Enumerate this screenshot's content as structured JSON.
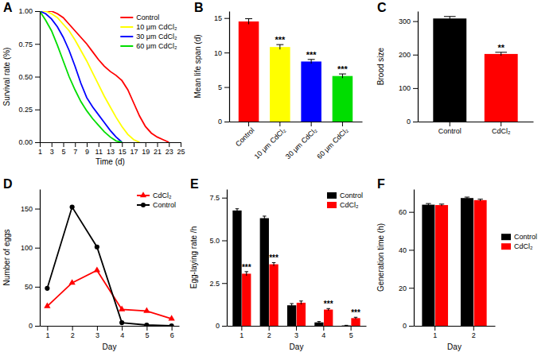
{
  "chart_data": [
    {
      "type": "line",
      "title": "A",
      "x": [
        1,
        2,
        3,
        4,
        5,
        6,
        7,
        8,
        9,
        10,
        11,
        12,
        13,
        14,
        15,
        16,
        17,
        18,
        19,
        20,
        21,
        22,
        23
      ],
      "xlim": [
        1,
        25
      ],
      "xticks": [
        1,
        3,
        5,
        7,
        9,
        11,
        13,
        15,
        17,
        19,
        21,
        23,
        25
      ],
      "ylim": [
        0,
        1
      ],
      "yticks": [
        {
          "value": 0,
          "label": "0.00"
        },
        0.25,
        {
          "value": 0.5,
          "label": "0.50"
        },
        0.75,
        {
          "value": 1,
          "label": "1.00"
        }
      ],
      "x_label": "Time (d)",
      "y_label": "Survival rate (%)",
      "legend": "top-right",
      "series": [
        {
          "name": "Control",
          "color": "#ff0000",
          "values": [
            1,
            1,
            1,
            0.98,
            0.95,
            0.9,
            0.85,
            0.8,
            0.75,
            0.69,
            0.63,
            0.58,
            0.54,
            0.51,
            0.47,
            0.4,
            0.3,
            0.2,
            0.12,
            0.07,
            0.04,
            0.02,
            0
          ]
        },
        {
          "name": "10 μm CdCl₂",
          "color": "#ffff00",
          "values": [
            1,
            1,
            0.98,
            0.95,
            0.9,
            0.85,
            0.78,
            0.7,
            0.62,
            0.53,
            0.44,
            0.35,
            0.27,
            0.19,
            0.12,
            0.06,
            0.02,
            0,
            null,
            null,
            null,
            null,
            null
          ]
        },
        {
          "name": "30 μm CdCl₂",
          "color": "#0000ff",
          "values": [
            1,
            0.98,
            0.94,
            0.88,
            0.8,
            0.7,
            0.58,
            0.45,
            0.34,
            0.27,
            0.21,
            0.15,
            0.09,
            0.04,
            0,
            null,
            null,
            null,
            null,
            null,
            null,
            null,
            null
          ]
        },
        {
          "name": "60 μm CdCl₂",
          "color": "#00dd00",
          "values": [
            1,
            0.93,
            0.85,
            0.74,
            0.62,
            0.5,
            0.4,
            0.31,
            0.24,
            0.18,
            0.13,
            0.08,
            0.04,
            0.01,
            0,
            null,
            null,
            null,
            null,
            null,
            null,
            null,
            null
          ]
        }
      ]
    },
    {
      "type": "bar",
      "title": "B",
      "categories": [
        "Control",
        "10 μm CdCl₂",
        "30 μm CdCl₂",
        "60 μm CdCl₂"
      ],
      "values": [
        14.5,
        10.8,
        8.7,
        6.6
      ],
      "errors": [
        0.4,
        0.35,
        0.3,
        0.3
      ],
      "colors": [
        "#ff0000",
        "#ffff00",
        "#0000ff",
        "#00dd00"
      ],
      "ylim": [
        0,
        16
      ],
      "yticks": [
        0,
        5,
        10,
        15
      ],
      "y_label": "Mean life span (d)",
      "annotations": [
        {
          "x": "10 μm CdCl₂",
          "text": "***"
        },
        {
          "x": "30 μm CdCl₂",
          "text": "***"
        },
        {
          "x": "60 μm CdCl₂",
          "text": "***"
        }
      ]
    },
    {
      "type": "bar",
      "title": "C",
      "categories": [
        "Control",
        "CdCl₂"
      ],
      "values": [
        308,
        202
      ],
      "errors": [
        6,
        5
      ],
      "colors": [
        "#000000",
        "#ff0000"
      ],
      "ylim": [
        0,
        330
      ],
      "yticks": [
        0,
        100,
        200,
        300
      ],
      "y_label": "Brood size",
      "annotations": [
        {
          "x": "CdCl₂",
          "text": "**"
        }
      ]
    },
    {
      "type": "line",
      "title": "D",
      "x": [
        1,
        2,
        3,
        4,
        5,
        6
      ],
      "xlim": [
        0.7,
        6.3
      ],
      "xticks": [
        1,
        2,
        3,
        4,
        5,
        6
      ],
      "ylim": [
        0,
        175
      ],
      "yticks": [
        0,
        50,
        100,
        150
      ],
      "x_label": "Day",
      "y_label": "Number of eggs",
      "legend": "top-right",
      "series": [
        {
          "name": "CdCl₂",
          "color": "#ff0000",
          "marker": "triangle",
          "values": [
            25,
            55,
            71,
            21,
            19,
            9
          ]
        },
        {
          "name": "Control",
          "color": "#000000",
          "marker": "circle",
          "values": [
            48,
            152,
            101,
            4,
            1,
            0
          ]
        }
      ]
    },
    {
      "type": "bar",
      "title": "E",
      "categories": [
        "1",
        "2",
        "3",
        "4",
        "5"
      ],
      "ylim": [
        0,
        8
      ],
      "yticks": [
        0,
        2.5,
        {
          "value": 5,
          "label": "5.0"
        },
        7.5
      ],
      "x_label": "Day",
      "y_label": "Egg-laying rate /h",
      "legend": "top-right",
      "series": [
        {
          "name": "Control",
          "color": "#000000",
          "values": [
            6.75,
            6.3,
            1.2,
            0.2,
            0.02
          ],
          "errors": [
            0.1,
            0.12,
            0.1,
            0.05,
            0.01
          ]
        },
        {
          "name": "CdCl₂",
          "color": "#ff0000",
          "values": [
            3.05,
            3.6,
            1.35,
            0.95,
            0.45
          ],
          "errors": [
            0.12,
            0.1,
            0.1,
            0.06,
            0.05
          ]
        }
      ],
      "annotations": [
        {
          "x": "1",
          "series": "CdCl₂",
          "text": "***"
        },
        {
          "x": "2",
          "series": "CdCl₂",
          "text": "***"
        },
        {
          "x": "4",
          "series": "CdCl₂",
          "text": "***"
        },
        {
          "x": "5",
          "series": "CdCl₂",
          "text": "***"
        }
      ]
    },
    {
      "type": "bar",
      "title": "F",
      "categories": [
        "1",
        "2"
      ],
      "ylim": [
        0,
        72
      ],
      "yticks": [
        0,
        20,
        40,
        60
      ],
      "x_label": "Day",
      "y_label": "Generation time (h)",
      "legend": "right",
      "series": [
        {
          "name": "Control",
          "color": "#000000",
          "values": [
            63.8,
            67.3
          ],
          "errors": [
            0.6,
            0.5
          ]
        },
        {
          "name": "CdCl₂",
          "color": "#ff0000",
          "values": [
            63.6,
            66.2
          ],
          "errors": [
            0.5,
            0.5
          ]
        }
      ]
    }
  ]
}
